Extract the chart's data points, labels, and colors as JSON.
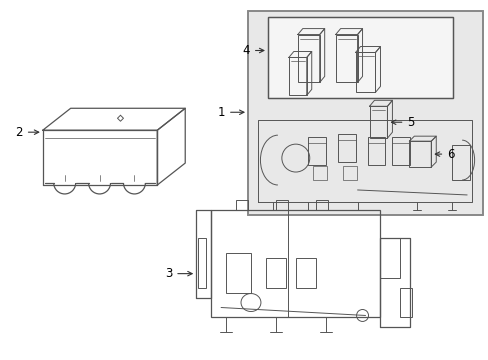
{
  "background_color": "#ffffff",
  "line_color": "#555555",
  "label_color": "#000000",
  "fig_width": 4.89,
  "fig_height": 3.6,
  "dpi": 100,
  "gray_fill": "#e8e8e8",
  "lw_main": 0.9,
  "lw_detail": 0.7,
  "lw_thin": 0.5
}
